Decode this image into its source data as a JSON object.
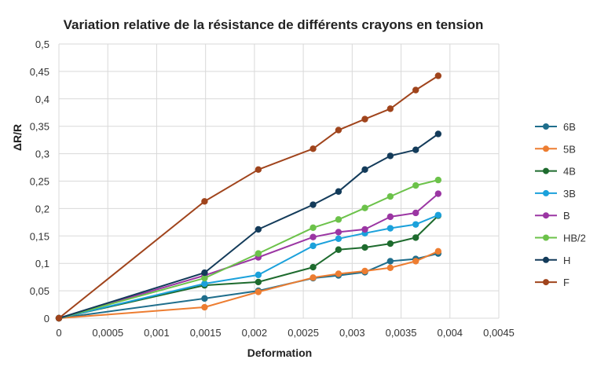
{
  "chart_data": {
    "type": "line",
    "title": "Variation relative de la résistance de différents crayons en tension",
    "xlabel": "Deformation",
    "ylabel": "ΔR/R",
    "xlim": [
      0,
      0.0045
    ],
    "ylim": [
      0,
      0.5
    ],
    "x_ticks": [
      "0",
      "0,0005",
      "0,001",
      "0,0015",
      "0,002",
      "0,0025",
      "0,003",
      "0,0035",
      "0,004",
      "0,0045"
    ],
    "y_ticks": [
      "0",
      "0,05",
      "0,1",
      "0,15",
      "0,2",
      "0,25",
      "0,3",
      "0,35",
      "0,4",
      "0,45",
      "0,5"
    ],
    "grid": true,
    "legend_position": "right",
    "series": [
      {
        "name": "6B",
        "color": "#1f6e8c",
        "x": [
          0,
          0.00149,
          0.00204,
          0.0026,
          0.00286,
          0.00313,
          0.00339,
          0.00365,
          0.00388
        ],
        "y": [
          0,
          0.036,
          0.05,
          0.073,
          0.078,
          0.084,
          0.104,
          0.108,
          0.118
        ]
      },
      {
        "name": "5B",
        "color": "#ed7d31",
        "x": [
          0,
          0.00149,
          0.00204,
          0.0026,
          0.00286,
          0.00313,
          0.00339,
          0.00365,
          0.00388
        ],
        "y": [
          0,
          0.02,
          0.048,
          0.074,
          0.081,
          0.086,
          0.092,
          0.104,
          0.122
        ]
      },
      {
        "name": "4B",
        "color": "#1e6b2e",
        "x": [
          0,
          0.00149,
          0.00204,
          0.0026,
          0.00286,
          0.00313,
          0.00339,
          0.00365,
          0.00388
        ],
        "y": [
          0,
          0.06,
          0.066,
          0.093,
          0.125,
          0.129,
          0.136,
          0.147,
          0.187
        ]
      },
      {
        "name": "3B",
        "color": "#1ba1db",
        "x": [
          0,
          0.00149,
          0.00204,
          0.0026,
          0.00286,
          0.00313,
          0.00339,
          0.00365,
          0.00388
        ],
        "y": [
          0,
          0.063,
          0.079,
          0.132,
          0.145,
          0.155,
          0.164,
          0.171,
          0.188
        ]
      },
      {
        "name": "B",
        "color": "#9b36a3",
        "x": [
          0,
          0.00149,
          0.00204,
          0.0026,
          0.00286,
          0.00313,
          0.00339,
          0.00365,
          0.00388
        ],
        "y": [
          0,
          0.078,
          0.111,
          0.148,
          0.157,
          0.162,
          0.185,
          0.192,
          0.227
        ]
      },
      {
        "name": "HB/2",
        "color": "#6cc24a",
        "x": [
          0,
          0.00149,
          0.00204,
          0.0026,
          0.00286,
          0.00313,
          0.00339,
          0.00365,
          0.00388
        ],
        "y": [
          0,
          0.073,
          0.118,
          0.165,
          0.18,
          0.201,
          0.222,
          0.242,
          0.252
        ]
      },
      {
        "name": "H",
        "color": "#133b5a",
        "x": [
          0,
          0.00149,
          0.00204,
          0.0026,
          0.00286,
          0.00313,
          0.00339,
          0.00365,
          0.00388
        ],
        "y": [
          0,
          0.083,
          0.162,
          0.207,
          0.231,
          0.271,
          0.296,
          0.307,
          0.336
        ]
      },
      {
        "name": "F",
        "color": "#a0441c",
        "x": [
          0,
          0.00149,
          0.00204,
          0.0026,
          0.00286,
          0.00313,
          0.00339,
          0.00365,
          0.00388
        ],
        "y": [
          0,
          0.213,
          0.271,
          0.309,
          0.343,
          0.363,
          0.382,
          0.416,
          0.442
        ]
      }
    ]
  }
}
